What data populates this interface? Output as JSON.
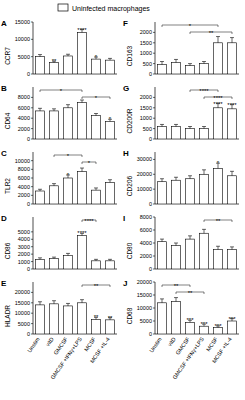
{
  "legend_entry": {
    "name": "Uninfected macrophages",
    "color": "#ffffff"
  },
  "chart_data": [
    {
      "type": "bar",
      "panel_label": "A",
      "y_label": "CCR7",
      "categories": [
        "Unstim",
        "vitD",
        "GMCSF",
        "GMCSF +IFNγ+LPS",
        "MCSF",
        "MCSF +IL-4"
      ],
      "values": [
        5000,
        3300,
        5200,
        12000,
        4300,
        4000
      ],
      "errors": [
        600,
        400,
        500,
        800,
        600,
        500
      ],
      "color": "#ffffff",
      "ylim": [
        0,
        15000
      ],
      "yticks": [
        0,
        5000,
        10000,
        15000
      ],
      "grid": false,
      "tick_labels": "y",
      "significance": [
        {
          "bars": [
            1
          ],
          "label": "**"
        },
        {
          "bars": [
            3
          ],
          "label": "****"
        },
        {
          "bars": [
            4
          ],
          "label": "*"
        }
      ]
    },
    {
      "type": "bar",
      "panel_label": "B",
      "y_label": "CD64",
      "categories": [
        "Unstim",
        "vitD",
        "GMCSF",
        "GMCSF +IFNγ+LPS",
        "MCSF",
        "MCSF +IL-4"
      ],
      "values": [
        5400,
        5400,
        6000,
        7000,
        4500,
        3400
      ],
      "errors": [
        500,
        400,
        600,
        500,
        400,
        400
      ],
      "color": "#ffffff",
      "ylim": [
        0,
        10000
      ],
      "yticks": [
        0,
        2000,
        4000,
        6000,
        8000
      ],
      "grid": false,
      "tick_labels": "y",
      "significance": [
        {
          "bars": [
            0,
            3
          ],
          "label": "*"
        },
        {
          "bars": [
            3,
            5
          ],
          "label": "*"
        },
        {
          "bars": [
            5
          ],
          "label": "*"
        }
      ]
    },
    {
      "type": "bar",
      "panel_label": "C",
      "y_label": "TLR2",
      "categories": [
        "Unstim",
        "vitD",
        "GMCSF",
        "GMCSF +IFNγ+LPS",
        "MCSF",
        "MCSF +IL-4"
      ],
      "values": [
        3000,
        4200,
        6000,
        7500,
        3200,
        5000
      ],
      "errors": [
        400,
        500,
        700,
        800,
        500,
        600
      ],
      "color": "#ffffff",
      "ylim": [
        0,
        12000
      ],
      "yticks": [
        0,
        2000,
        4000,
        6000,
        8000,
        10000
      ],
      "grid": false,
      "tick_labels": "y",
      "significance": [
        {
          "bars": [
            2
          ],
          "label": "*"
        },
        {
          "bars": [
            1,
            3
          ],
          "label": "*"
        },
        {
          "bars": [
            3,
            4
          ],
          "label": "*"
        }
      ]
    },
    {
      "type": "bar",
      "panel_label": "D",
      "y_label": "CD86",
      "categories": [
        "Unstim",
        "vitD",
        "GMCSF",
        "GMCSF +IFNγ+LPS",
        "MCSF",
        "MCSF +IL-4"
      ],
      "values": [
        1300,
        1400,
        1800,
        4500,
        1100,
        1100
      ],
      "errors": [
        200,
        200,
        300,
        300,
        200,
        200
      ],
      "color": "#ffffff",
      "ylim": [
        0,
        7000
      ],
      "yticks": [
        0,
        1000,
        2000,
        3000,
        4000,
        5000
      ],
      "grid": false,
      "tick_labels": "y",
      "significance": [
        {
          "bars": [
            3
          ],
          "label": "****"
        },
        {
          "bars": [
            3,
            4
          ],
          "label": "****"
        }
      ]
    },
    {
      "type": "bar",
      "panel_label": "E",
      "y_label": "HLADR",
      "categories": [
        "Unstim",
        "vitD",
        "GMCSF",
        "GMCSF +IFNγ+LPS",
        "MCSF",
        "MCSF +IL-4"
      ],
      "values": [
        14000,
        14500,
        13500,
        15000,
        7000,
        6800
      ],
      "errors": [
        1500,
        1500,
        1200,
        1500,
        1000,
        1000
      ],
      "color": "#ffffff",
      "ylim": [
        0,
        25000
      ],
      "yticks": [
        0,
        5000,
        10000,
        15000,
        20000
      ],
      "grid": false,
      "tick_labels": true,
      "significance": [
        {
          "bars": [
            4
          ],
          "label": "**"
        },
        {
          "bars": [
            5
          ],
          "label": "**"
        },
        {
          "bars": [
            3,
            5
          ],
          "label": "**"
        }
      ]
    },
    {
      "type": "bar",
      "panel_label": "F",
      "y_label": "CD163",
      "categories": [
        "Unstim",
        "vitD",
        "GMCSF",
        "GMCSF +IFNγ+LPS",
        "MCSF",
        "MCSF +IL-4"
      ],
      "values": [
        450,
        550,
        400,
        500,
        1500,
        1500
      ],
      "errors": [
        150,
        150,
        100,
        100,
        300,
        250
      ],
      "color": "#ffffff",
      "ylim": [
        0,
        2500
      ],
      "yticks": [
        0,
        500,
        1000,
        1500,
        2000
      ],
      "grid": false,
      "tick_labels": "y",
      "significance": [
        {
          "bars": [
            0,
            4
          ],
          "label": "*"
        },
        {
          "bars": [
            2,
            5
          ],
          "label": "**"
        }
      ]
    },
    {
      "type": "bar",
      "panel_label": "G",
      "y_label": "CD200R",
      "categories": [
        "Unstim",
        "vitD",
        "GMCSF",
        "GMCSF +IFNγ+LPS",
        "MCSF",
        "MCSF +IL-4"
      ],
      "values": [
        600,
        600,
        500,
        500,
        1500,
        1450
      ],
      "errors": [
        100,
        100,
        100,
        100,
        200,
        200
      ],
      "color": "#ffffff",
      "ylim": [
        0,
        2500
      ],
      "yticks": [
        0,
        500,
        1000,
        1500,
        2000
      ],
      "grid": false,
      "tick_labels": "y",
      "significance": [
        {
          "bars": [
            4
          ],
          "label": "****"
        },
        {
          "bars": [
            5
          ],
          "label": "****"
        },
        {
          "bars": [
            2,
            4
          ],
          "label": "****"
        },
        {
          "bars": [
            3,
            5
          ],
          "label": "****"
        }
      ]
    },
    {
      "type": "bar",
      "panel_label": "H",
      "y_label": "CD206",
      "categories": [
        "Unstim",
        "vitD",
        "GMCSF",
        "GMCSF +IFNγ+LPS",
        "MCSF",
        "MCSF +IL-4"
      ],
      "values": [
        15000,
        16000,
        17000,
        20000,
        24000,
        19000
      ],
      "errors": [
        2000,
        2000,
        2000,
        3000,
        3500,
        3000
      ],
      "color": "#ffffff",
      "ylim": [
        0,
        35000
      ],
      "yticks": [
        0,
        10000,
        20000,
        30000
      ],
      "grid": false,
      "tick_labels": "y",
      "significance": [
        {
          "bars": [
            4
          ],
          "label": "*"
        }
      ]
    },
    {
      "type": "bar",
      "panel_label": "I",
      "y_label": "CD80",
      "categories": [
        "Unstim",
        "vitD",
        "GMCSF",
        "GMCSF +IFNγ+LPS",
        "MCSF",
        "MCSF +IL-4"
      ],
      "values": [
        4200,
        3600,
        4600,
        5500,
        3000,
        3000
      ],
      "errors": [
        400,
        400,
        500,
        600,
        500,
        400
      ],
      "color": "#ffffff",
      "ylim": [
        0,
        8000
      ],
      "yticks": [
        0,
        2000,
        4000,
        6000,
        8000
      ],
      "grid": false,
      "tick_labels": "y",
      "significance": [
        {
          "bars": [
            3,
            5
          ],
          "label": "**"
        }
      ]
    },
    {
      "type": "bar",
      "panel_label": "J",
      "y_label": "CD68",
      "categories": [
        "Unstim",
        "vitD",
        "GMCSF",
        "GMCSF +IFNγ+LPS",
        "MCSF",
        "MCSF +IL-4"
      ],
      "values": [
        12000,
        12500,
        4500,
        3000,
        2500,
        5000
      ],
      "errors": [
        1500,
        1500,
        800,
        800,
        600,
        900
      ],
      "color": "#ffffff",
      "ylim": [
        0,
        20000
      ],
      "yticks": [
        0,
        5000,
        10000,
        15000,
        20000
      ],
      "grid": false,
      "tick_labels": true,
      "significance": [
        {
          "bars": [
            2
          ],
          "label": "***"
        },
        {
          "bars": [
            3
          ],
          "label": "***"
        },
        {
          "bars": [
            4
          ],
          "label": "***"
        },
        {
          "bars": [
            5
          ],
          "label": "***"
        },
        {
          "bars": [
            0,
            2
          ],
          "label": "**"
        },
        {
          "bars": [
            1,
            3
          ],
          "label": "**"
        }
      ]
    }
  ]
}
